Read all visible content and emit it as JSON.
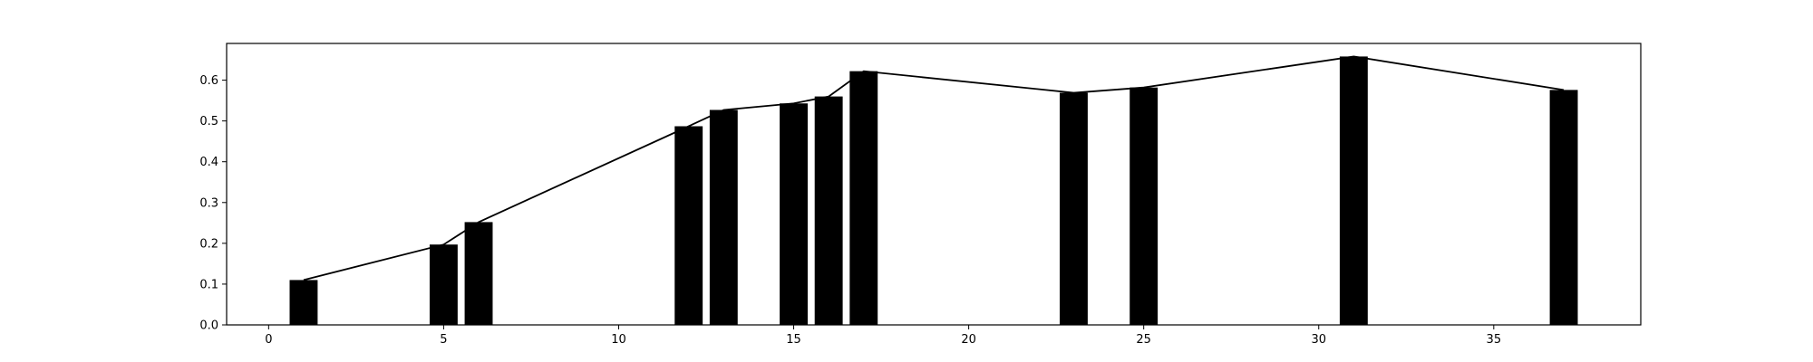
{
  "chart_data": {
    "type": "bar",
    "title": "",
    "xlabel": "",
    "ylabel": "",
    "xlim": [
      -1.2,
      39.2
    ],
    "ylim": [
      0,
      0.69
    ],
    "grid": false,
    "bar_width": 0.8,
    "bar_color": "#000000",
    "line_color": "#000000",
    "x": [
      1,
      5,
      6,
      12,
      13,
      15,
      16,
      17,
      23,
      25,
      31,
      37
    ],
    "values": [
      0.11,
      0.197,
      0.252,
      0.487,
      0.527,
      0.543,
      0.56,
      0.622,
      0.569,
      0.582,
      0.658,
      0.576
    ],
    "series": [
      {
        "name": "bars",
        "kind": "bar",
        "x": [
          1,
          5,
          6,
          12,
          13,
          15,
          16,
          17,
          23,
          25,
          31,
          37
        ],
        "values": [
          0.11,
          0.197,
          0.252,
          0.487,
          0.527,
          0.543,
          0.56,
          0.622,
          0.569,
          0.582,
          0.658,
          0.576
        ]
      },
      {
        "name": "line",
        "kind": "line",
        "x": [
          1,
          5,
          6,
          12,
          13,
          15,
          16,
          17,
          23,
          25,
          31,
          37
        ],
        "values": [
          0.11,
          0.197,
          0.252,
          0.487,
          0.527,
          0.543,
          0.56,
          0.622,
          0.569,
          0.582,
          0.658,
          0.576
        ]
      }
    ],
    "xticks": [
      0,
      5,
      10,
      15,
      20,
      25,
      30,
      35
    ],
    "xtick_labels": [
      "0",
      "5",
      "10",
      "15",
      "20",
      "25",
      "30",
      "35"
    ],
    "yticks": [
      0.0,
      0.1,
      0.2,
      0.3,
      0.4,
      0.5,
      0.6
    ],
    "ytick_labels": [
      "0.0",
      "0.1",
      "0.2",
      "0.3",
      "0.4",
      "0.5",
      "0.6"
    ]
  }
}
